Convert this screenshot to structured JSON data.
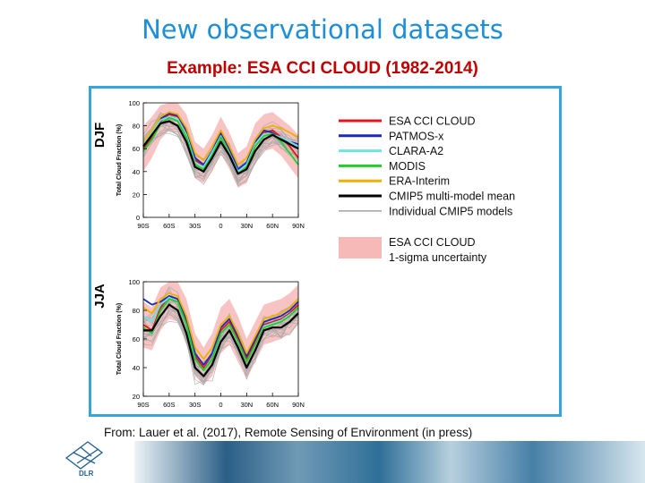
{
  "slide": {
    "title": "New observational datasets",
    "subtitle": "Example: ESA CCI CLOUD (1982-2014)",
    "source": "From: Lauer et al. (2017), Remote Sensing of Environment (in press)",
    "logo_text": "DLR",
    "accent_color": "#1e8fd6",
    "subtitle_color": "#c00000",
    "frame_color": "#35a6dd"
  },
  "chart_data": [
    {
      "type": "line",
      "panel": "DJF",
      "ylabel": "Total Cloud Fraction (%)",
      "ylim": [
        0,
        100
      ],
      "yticks": [
        0,
        20,
        40,
        60,
        80,
        100
      ],
      "xlim": [
        -90,
        90
      ],
      "xticks": [
        -90,
        -60,
        -30,
        0,
        30,
        60,
        90
      ],
      "xtick_labels": [
        "90S",
        "60S",
        "30S",
        "0",
        "30N",
        "60N",
        "90N"
      ],
      "x": [
        -90,
        -80,
        -70,
        -60,
        -50,
        -40,
        -30,
        -20,
        -10,
        0,
        10,
        20,
        30,
        40,
        50,
        60,
        70,
        80,
        90
      ],
      "series": [
        {
          "name": "ESA CCI CLOUD",
          "color": "#e8141b",
          "values": [
            60,
            70,
            84,
            90,
            88,
            74,
            50,
            45,
            56,
            72,
            58,
            40,
            46,
            65,
            74,
            76,
            70,
            62,
            52
          ]
        },
        {
          "name": "PATMOS-x",
          "color": "#1c2ab8",
          "values": [
            62,
            72,
            86,
            91,
            89,
            76,
            52,
            46,
            58,
            74,
            60,
            42,
            48,
            66,
            76,
            74,
            68,
            66,
            64
          ]
        },
        {
          "name": "CLARA-A2",
          "color": "#6ee3e8",
          "values": [
            64,
            74,
            85,
            88,
            86,
            72,
            48,
            44,
            57,
            71,
            56,
            40,
            46,
            64,
            73,
            72,
            70,
            66,
            62
          ]
        },
        {
          "name": "MODIS",
          "color": "#22cc2a",
          "values": [
            58,
            68,
            82,
            87,
            84,
            70,
            46,
            42,
            54,
            70,
            55,
            38,
            44,
            62,
            71,
            73,
            66,
            56,
            46
          ]
        },
        {
          "name": "ERA-Interim",
          "color": "#f0b000",
          "values": [
            66,
            76,
            88,
            92,
            90,
            78,
            56,
            50,
            62,
            76,
            62,
            46,
            52,
            68,
            78,
            80,
            78,
            74,
            70
          ]
        },
        {
          "name": "CMIP5 multi-model mean",
          "color": "#000000",
          "values": [
            62,
            72,
            82,
            84,
            80,
            66,
            44,
            40,
            52,
            66,
            54,
            38,
            42,
            58,
            68,
            72,
            68,
            64,
            60
          ]
        }
      ],
      "uncertainty": {
        "name": "ESA CCI CLOUD 1-sigma uncertainty",
        "color": "#f7b8b8",
        "lower": [
          40,
          52,
          68,
          76,
          74,
          58,
          34,
          30,
          40,
          56,
          42,
          26,
          30,
          48,
          58,
          60,
          54,
          44,
          34
        ],
        "upper": [
          80,
          88,
          98,
          100,
          100,
          90,
          66,
          60,
          72,
          88,
          74,
          56,
          62,
          82,
          90,
          92,
          86,
          80,
          72
        ]
      }
    },
    {
      "type": "line",
      "panel": "JJA",
      "ylabel": "Total Cloud Fraction (%)",
      "ylim": [
        20,
        100
      ],
      "yticks": [
        20,
        40,
        60,
        80,
        100
      ],
      "xlim": [
        -90,
        90
      ],
      "xticks": [
        -90,
        -60,
        -30,
        0,
        30,
        60,
        90
      ],
      "xtick_labels": [
        "90S",
        "60S",
        "30S",
        "0",
        "30N",
        "60N",
        "90N"
      ],
      "x": [
        -90,
        -80,
        -70,
        -60,
        -50,
        -40,
        -30,
        -20,
        -10,
        0,
        10,
        20,
        30,
        40,
        50,
        60,
        70,
        80,
        90
      ],
      "series": [
        {
          "name": "ESA CCI CLOUD",
          "color": "#e8141b",
          "values": [
            70,
            66,
            82,
            90,
            88,
            72,
            48,
            40,
            48,
            66,
            72,
            60,
            46,
            58,
            70,
            72,
            74,
            78,
            84
          ]
        },
        {
          "name": "PATMOS-x",
          "color": "#1c2ab8",
          "values": [
            88,
            84,
            86,
            90,
            88,
            74,
            50,
            42,
            50,
            68,
            74,
            62,
            48,
            60,
            72,
            74,
            76,
            80,
            86
          ]
        },
        {
          "name": "CLARA-A2",
          "color": "#6ee3e8",
          "values": [
            76,
            72,
            84,
            89,
            86,
            70,
            46,
            38,
            47,
            64,
            70,
            58,
            44,
            56,
            69,
            71,
            73,
            77,
            82
          ]
        },
        {
          "name": "MODIS",
          "color": "#22cc2a",
          "values": [
            68,
            64,
            80,
            88,
            86,
            70,
            46,
            38,
            46,
            64,
            70,
            58,
            44,
            56,
            68,
            70,
            72,
            76,
            82
          ]
        },
        {
          "name": "ERA-Interim",
          "color": "#f0b000",
          "values": [
            82,
            78,
            88,
            92,
            90,
            76,
            54,
            46,
            54,
            70,
            76,
            64,
            50,
            62,
            74,
            76,
            78,
            82,
            88
          ]
        },
        {
          "name": "CMIP5 multi-model mean",
          "color": "#000000",
          "values": [
            66,
            66,
            76,
            84,
            80,
            64,
            40,
            34,
            42,
            58,
            66,
            54,
            40,
            52,
            66,
            68,
            68,
            72,
            78
          ]
        }
      ],
      "uncertainty": {
        "name": "ESA CCI CLOUD 1-sigma uncertainty",
        "color": "#f7b8b8",
        "lower": [
          54,
          52,
          66,
          74,
          72,
          56,
          34,
          28,
          34,
          50,
          56,
          44,
          32,
          44,
          56,
          58,
          60,
          64,
          70
        ],
        "upper": [
          86,
          82,
          96,
          100,
          100,
          88,
          64,
          54,
          64,
          82,
          88,
          76,
          60,
          72,
          84,
          86,
          88,
          92,
          98
        ]
      }
    }
  ],
  "panels": {
    "top_label": "DJF",
    "bottom_label": "JJA"
  },
  "legend": {
    "entries": [
      {
        "label": "ESA CCI CLOUD",
        "color": "#e8141b"
      },
      {
        "label": "PATMOS-x",
        "color": "#1c2ab8"
      },
      {
        "label": "CLARA-A2",
        "color": "#6ee3e8"
      },
      {
        "label": "MODIS",
        "color": "#22cc2a"
      },
      {
        "label": "ERA-Interim",
        "color": "#f0b000"
      },
      {
        "label": "CMIP5 multi-model mean",
        "color": "#000000"
      },
      {
        "label": "Individual CMIP5 models",
        "color": "#aaaaaa"
      }
    ],
    "band_label_1": "ESA CCI CLOUD",
    "band_label_2": "1-sigma uncertainty",
    "band_color": "#f7b8b8"
  }
}
